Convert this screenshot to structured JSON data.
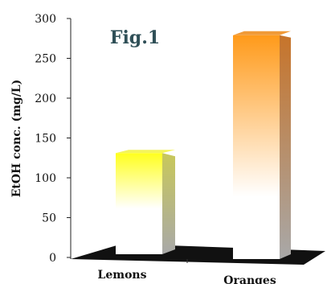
{
  "chart_data": {
    "type": "bar",
    "title": "Fig.1",
    "ylabel": "EtOH conc. (mg/L)",
    "xlabel": "",
    "categories": [
      "Lemons",
      "Oranges"
    ],
    "values": [
      127,
      281
    ],
    "ylim": [
      0,
      300
    ],
    "yticks": [
      0,
      50,
      100,
      150,
      200,
      250,
      300
    ],
    "grid": false,
    "legend": "none",
    "colors": {
      "Lemons": "#ffff1e",
      "Oranges": "#ff9a1a",
      "floor": "#111111"
    }
  }
}
